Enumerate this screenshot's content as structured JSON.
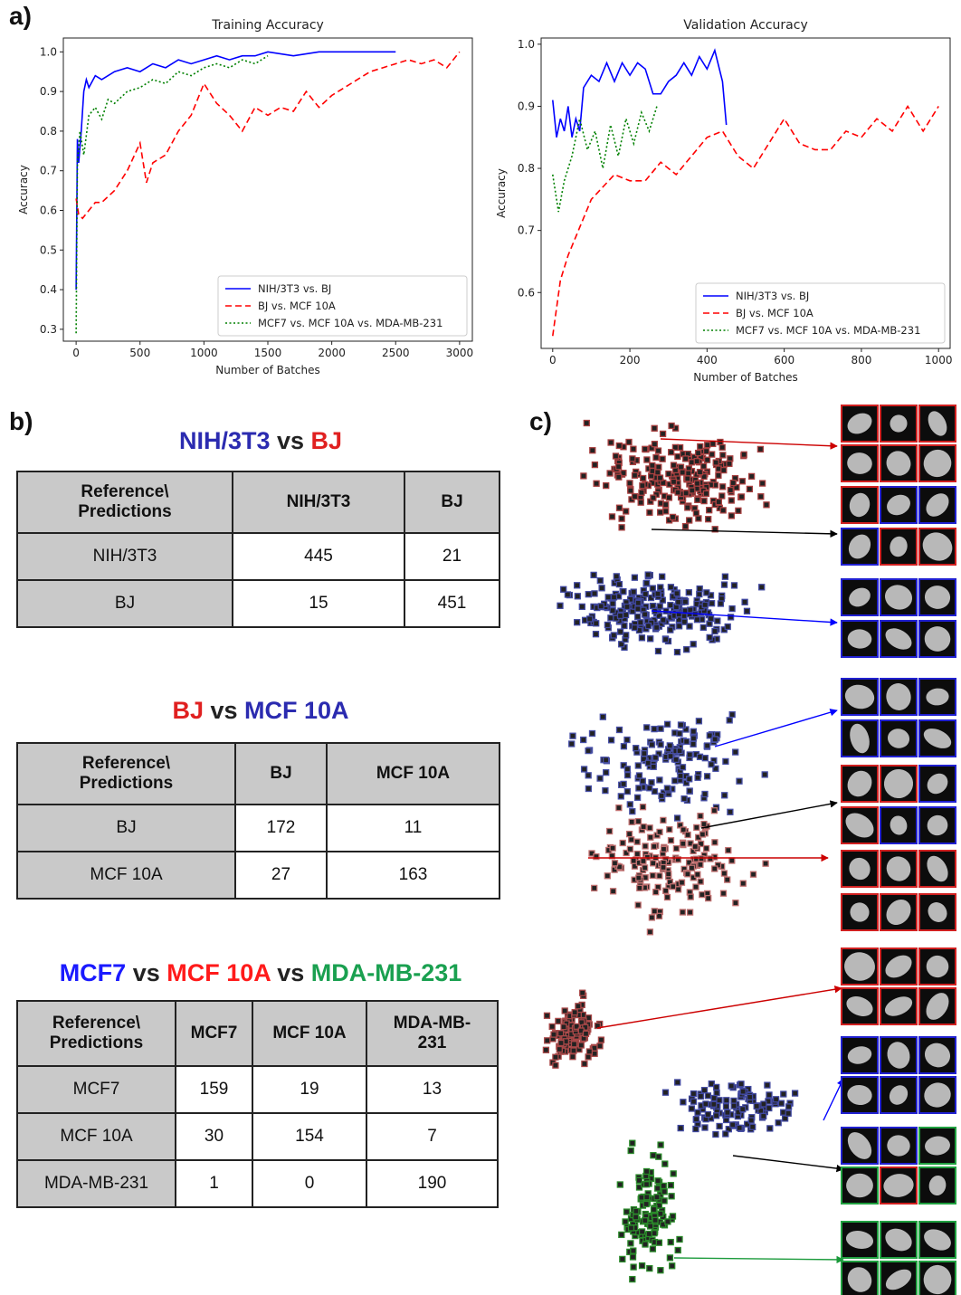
{
  "panel_labels": [
    "a)",
    "b)",
    "c)"
  ],
  "chart_data": [
    {
      "type": "line",
      "title": "Training Accuracy",
      "x_label": "Number of Batches",
      "y_label": "Accuracy",
      "xlim": [
        -100,
        3100
      ],
      "ylim": [
        0.27,
        1.035
      ],
      "xticks": [
        0,
        500,
        1000,
        1500,
        2000,
        2500,
        3000
      ],
      "yticks": [
        0.3,
        0.4,
        0.5,
        0.6,
        0.7,
        0.8,
        0.9,
        {
          "value": 1,
          "label": "1.0"
        }
      ],
      "legend": "lower right",
      "series": [
        {
          "name": "NIH/3T3 vs. BJ",
          "color": "#0000ff",
          "style": "solid",
          "x": [
            0,
            10,
            20,
            40,
            60,
            80,
            100,
            150,
            200,
            300,
            400,
            500,
            600,
            700,
            800,
            900,
            1000,
            1100,
            1200,
            1300,
            1400,
            1500,
            1700,
            1900,
            2100,
            2300,
            2500
          ],
          "values": [
            0.4,
            0.78,
            0.72,
            0.8,
            0.9,
            0.93,
            0.91,
            0.94,
            0.93,
            0.95,
            0.96,
            0.95,
            0.97,
            0.96,
            0.98,
            0.97,
            0.98,
            0.99,
            0.98,
            0.99,
            0.99,
            1.0,
            0.99,
            1.0,
            1.0,
            1.0,
            1.0
          ]
        },
        {
          "name": "BJ vs. MCF 10A",
          "color": "#ff0000",
          "style": "dashed",
          "x": [
            0,
            20,
            50,
            100,
            150,
            200,
            300,
            400,
            500,
            550,
            600,
            700,
            800,
            900,
            1000,
            1100,
            1200,
            1300,
            1400,
            1500,
            1600,
            1700,
            1800,
            1900,
            2000,
            2100,
            2200,
            2300,
            2400,
            2500,
            2600,
            2700,
            2800,
            2900,
            3000
          ],
          "values": [
            0.63,
            0.59,
            0.58,
            0.6,
            0.62,
            0.62,
            0.65,
            0.7,
            0.77,
            0.67,
            0.72,
            0.74,
            0.8,
            0.84,
            0.92,
            0.87,
            0.84,
            0.8,
            0.86,
            0.84,
            0.86,
            0.85,
            0.9,
            0.86,
            0.89,
            0.91,
            0.93,
            0.95,
            0.96,
            0.97,
            0.98,
            0.97,
            0.98,
            0.96,
            1.0
          ]
        },
        {
          "name": "MCF7 vs. MCF 10A vs. MDA-MB-231",
          "color": "#008000",
          "style": "dotted",
          "x": [
            0,
            10,
            30,
            60,
            100,
            150,
            200,
            250,
            300,
            400,
            500,
            600,
            700,
            800,
            900,
            1000,
            1100,
            1200,
            1300,
            1400,
            1500
          ],
          "values": [
            0.29,
            0.72,
            0.8,
            0.74,
            0.84,
            0.86,
            0.83,
            0.88,
            0.87,
            0.9,
            0.91,
            0.93,
            0.92,
            0.95,
            0.94,
            0.96,
            0.97,
            0.96,
            0.98,
            0.97,
            0.99
          ]
        }
      ]
    },
    {
      "type": "line",
      "title": "Validation Accuracy",
      "x_label": "Number of Batches",
      "y_label": "Accuracy",
      "xlim": [
        -30,
        1030
      ],
      "ylim": [
        0.51,
        1.01
      ],
      "xticks": [
        0,
        200,
        400,
        600,
        800,
        1000
      ],
      "yticks": [
        0.6,
        0.7,
        0.8,
        0.9,
        {
          "value": 1,
          "label": "1.0"
        }
      ],
      "legend": "lower right",
      "series": [
        {
          "name": "NIH/3T3 vs. BJ",
          "color": "#0000ff",
          "style": "solid",
          "x": [
            0,
            10,
            20,
            30,
            40,
            50,
            60,
            70,
            80,
            100,
            120,
            140,
            160,
            180,
            200,
            220,
            240,
            260,
            280,
            300,
            320,
            340,
            360,
            380,
            400,
            420,
            440,
            450
          ],
          "values": [
            0.91,
            0.85,
            0.88,
            0.86,
            0.9,
            0.85,
            0.88,
            0.86,
            0.93,
            0.95,
            0.94,
            0.97,
            0.94,
            0.97,
            0.95,
            0.97,
            0.96,
            0.92,
            0.92,
            0.94,
            0.95,
            0.97,
            0.95,
            0.98,
            0.96,
            0.99,
            0.94,
            0.87
          ]
        },
        {
          "name": "BJ vs. MCF 10A",
          "color": "#ff0000",
          "style": "dashed",
          "x": [
            0,
            20,
            40,
            60,
            80,
            100,
            130,
            160,
            200,
            240,
            280,
            320,
            360,
            400,
            440,
            480,
            520,
            560,
            600,
            640,
            680,
            720,
            760,
            800,
            840,
            880,
            920,
            960,
            1000
          ],
          "values": [
            0.53,
            0.62,
            0.66,
            0.69,
            0.72,
            0.75,
            0.77,
            0.79,
            0.78,
            0.78,
            0.81,
            0.79,
            0.82,
            0.85,
            0.86,
            0.82,
            0.8,
            0.84,
            0.88,
            0.84,
            0.83,
            0.83,
            0.86,
            0.85,
            0.88,
            0.86,
            0.9,
            0.86,
            0.9
          ]
        },
        {
          "name": "MCF7 vs. MCF 10A vs. MDA-MB-231",
          "color": "#008000",
          "style": "dotted",
          "x": [
            0,
            15,
            30,
            50,
            70,
            90,
            110,
            130,
            150,
            170,
            190,
            210,
            230,
            250,
            270
          ],
          "values": [
            0.79,
            0.73,
            0.78,
            0.82,
            0.88,
            0.83,
            0.86,
            0.8,
            0.87,
            0.82,
            0.88,
            0.84,
            0.89,
            0.86,
            0.9
          ]
        }
      ]
    }
  ],
  "tables": [
    {
      "title": [
        {
          "text": "NIH/3T3",
          "color": "#2b2bb0"
        },
        {
          "text": " vs ",
          "color": "#222222"
        },
        {
          "text": "BJ",
          "color": "#e02020"
        }
      ],
      "header": [
        "Reference\\\nPredictions",
        "NIH/3T3",
        "BJ"
      ],
      "rows": [
        [
          "NIH/3T3",
          445,
          21
        ],
        [
          "BJ",
          15,
          451
        ]
      ]
    },
    {
      "title": [
        {
          "text": "BJ",
          "color": "#e02020"
        },
        {
          "text": " vs ",
          "color": "#222222"
        },
        {
          "text": "MCF 10A",
          "color": "#2b2bb0"
        }
      ],
      "header": [
        "Reference\\\nPredictions",
        "BJ",
        "MCF 10A"
      ],
      "rows": [
        [
          "BJ",
          172,
          11
        ],
        [
          "MCF 10A",
          27,
          163
        ]
      ]
    },
    {
      "title": [
        {
          "text": "MCF7",
          "color": "#1a1aff"
        },
        {
          "text": " vs ",
          "color": "#222222"
        },
        {
          "text": "MCF 10A",
          "color": "#ff1a1a"
        },
        {
          "text": " vs ",
          "color": "#222222"
        },
        {
          "text": "MDA-MB-231",
          "color": "#1aa050"
        }
      ],
      "header": [
        "Reference\\\nPredictions",
        "MCF7",
        "MCF 10A",
        "MDA-MB-\n231"
      ],
      "rows": [
        [
          "MCF7",
          159,
          19,
          13
        ],
        [
          "MCF 10A",
          30,
          154,
          7
        ],
        [
          "MDA-MB-231",
          1,
          0,
          190
        ]
      ]
    }
  ]
}
